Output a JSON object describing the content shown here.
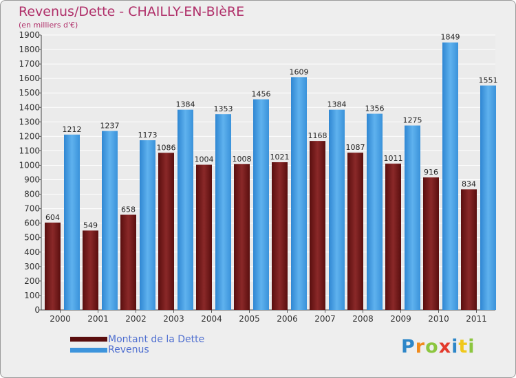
{
  "chart_data": {
    "type": "bar",
    "title": "Revenus/Dette - CHAILLY-EN-BIèRE",
    "subtitle": "(en milliers d'€)",
    "xlabel": "",
    "ylabel": "",
    "ylim": [
      0,
      1900
    ],
    "ytick_step": 100,
    "grid": true,
    "categories": [
      "2000",
      "2001",
      "2002",
      "2003",
      "2004",
      "2005",
      "2006",
      "2007",
      "2008",
      "2009",
      "2010",
      "2011"
    ],
    "series": [
      {
        "name": "Montant de la Dette",
        "color": "#7a1c1c",
        "values": [
          604,
          549,
          658,
          1086,
          1004,
          1008,
          1021,
          1168,
          1087,
          1011,
          916,
          834
        ],
        "labels": [
          "604",
          "549",
          "658",
          "1086",
          "1004",
          "1008",
          "1021",
          "1168",
          "1087",
          "1011",
          "916",
          "834"
        ]
      },
      {
        "name": "Revenus",
        "color": "#4ea5e6",
        "values": [
          1212,
          1237,
          1173,
          1384,
          1353,
          1456,
          1609,
          1384,
          1356,
          1275,
          1849,
          1551
        ],
        "labels": [
          "1212",
          "1237",
          "1173",
          "1384",
          "1353",
          "1456",
          "1609",
          "1384",
          "1356",
          "1275",
          "1849",
          "1551"
        ]
      }
    ],
    "legend": {
      "position": "bottom-left",
      "items": [
        "Montant de la Dette",
        "Revenus"
      ]
    }
  },
  "logo": {
    "letters": [
      "P",
      "r",
      "o",
      "x",
      "i",
      "t",
      "i"
    ]
  },
  "colors": {
    "title": "#b0306a",
    "legend_text": "#4f6fd0",
    "debt": "#7a1c1c",
    "revenue": "#4ea5e6"
  }
}
